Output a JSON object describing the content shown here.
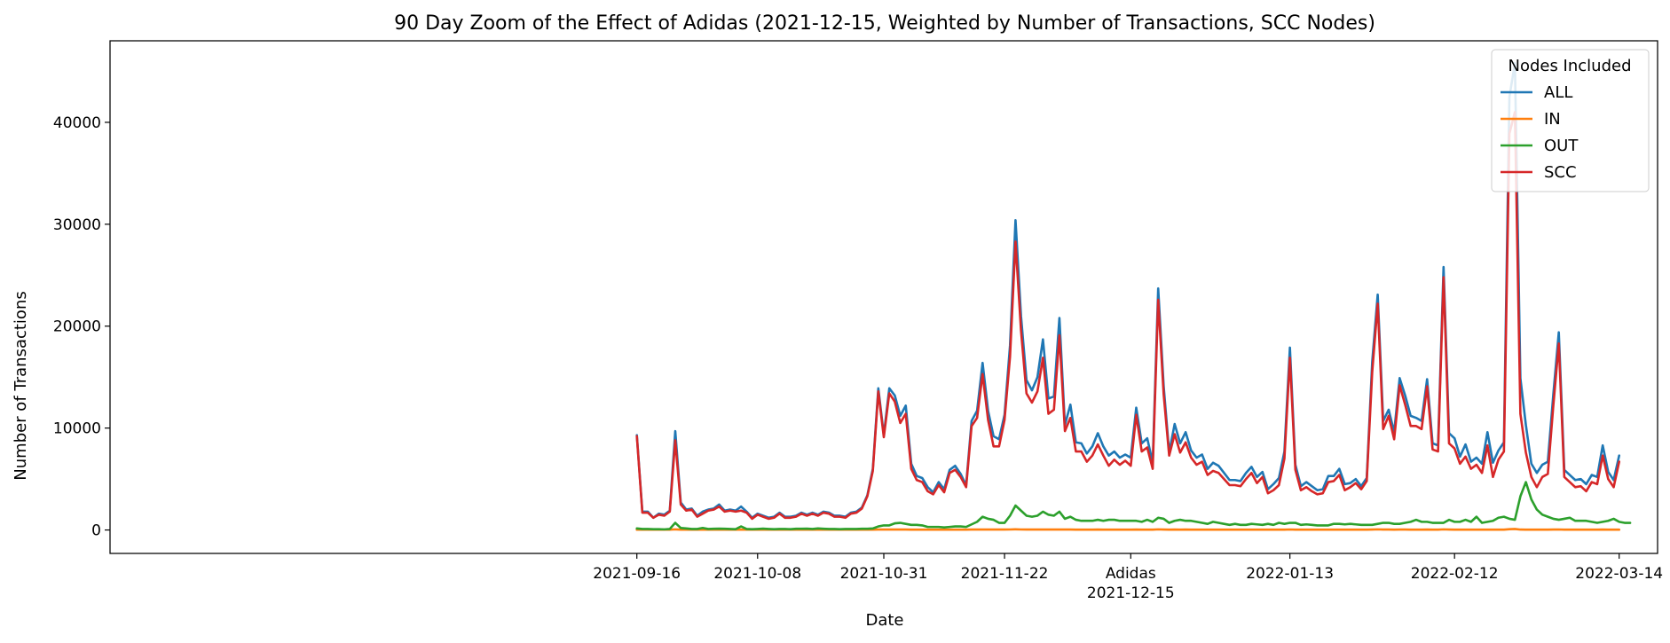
{
  "chart_data": {
    "type": "line",
    "title": "90 Day Zoom of the Effect of Adidas (2021-12-15, Weighted by Number of Transactions, SCC Nodes)",
    "xlabel": "Date",
    "ylabel": "Number of Transactions",
    "ylim": [
      -2300,
      48000
    ],
    "yticks": [
      0,
      10000,
      20000,
      30000,
      40000
    ],
    "xlim_days": [
      -96,
      186
    ],
    "xticks": [
      {
        "day": 0,
        "label": "2021-09-16"
      },
      {
        "day": 22,
        "label": "2021-10-08"
      },
      {
        "day": 45,
        "label": "2021-10-31"
      },
      {
        "day": 67,
        "label": "2021-11-22"
      },
      {
        "day": 90,
        "label": "Adidas",
        "label2": "2021-12-15"
      },
      {
        "day": 119,
        "label": "2022-01-13"
      },
      {
        "day": 149,
        "label": "2022-02-12"
      },
      {
        "day": 179,
        "label": "2022-03-14"
      }
    ],
    "start_date": "2021-09-16",
    "legend_title": "Nodes Included",
    "legend_position": "top-right",
    "grid": false,
    "series": [
      {
        "name": "ALL",
        "color": "#1f77b4",
        "values": [
          9300,
          1800,
          1800,
          1200,
          1600,
          1500,
          1900,
          9700,
          2700,
          2000,
          2100,
          1400,
          1800,
          2000,
          2100,
          2500,
          1900,
          2000,
          1900,
          2300,
          1800,
          1200,
          1600,
          1400,
          1200,
          1300,
          1700,
          1300,
          1300,
          1400,
          1700,
          1500,
          1700,
          1500,
          1800,
          1700,
          1400,
          1400,
          1300,
          1700,
          1800,
          2200,
          3400,
          6000,
          13900,
          9300,
          13900,
          13200,
          11200,
          12200,
          6500,
          5300,
          5100,
          4200,
          3700,
          4700,
          4000,
          5900,
          6300,
          5500,
          4400,
          10700,
          11700,
          16400,
          11700,
          9200,
          8900,
          11300,
          18100,
          30400,
          21000,
          14700,
          13700,
          15000,
          18700,
          12900,
          13100,
          20800,
          10300,
          12300,
          8600,
          8500,
          7500,
          8200,
          9500,
          8200,
          7300,
          7700,
          7100,
          7400,
          7100,
          12000,
          8500,
          9000,
          6600,
          23700,
          14100,
          7600,
          10400,
          8500,
          9600,
          7800,
          7100,
          7400,
          6000,
          6600,
          6300,
          5600,
          4900,
          4900,
          4800,
          5600,
          6200,
          5200,
          5700,
          4000,
          4500,
          5100,
          7700,
          17900,
          6400,
          4300,
          4700,
          4300,
          3900,
          4000,
          5300,
          5300,
          6000,
          4500,
          4600,
          5000,
          4300,
          5100,
          16500,
          23100,
          10700,
          11800,
          9600,
          14900,
          13200,
          11200,
          11000,
          10700,
          14800,
          8500,
          8300,
          25800,
          9500,
          9000,
          7200,
          8400,
          6700,
          7100,
          6500,
          9600,
          6600,
          7800,
          8600,
          42500,
          45800,
          14900,
          10300,
          6500,
          5600,
          6400,
          6700,
          13300,
          19400,
          5900,
          5400,
          4900,
          5000,
          4500,
          5400,
          5200,
          8300,
          5700,
          4900,
          7300
        ]
      },
      {
        "name": "IN",
        "color": "#ff7f0e",
        "values": [
          30,
          30,
          30,
          30,
          30,
          30,
          30,
          60,
          30,
          30,
          30,
          30,
          30,
          30,
          30,
          30,
          30,
          30,
          30,
          30,
          30,
          30,
          30,
          30,
          30,
          30,
          30,
          30,
          30,
          30,
          30,
          30,
          30,
          30,
          30,
          30,
          30,
          30,
          30,
          30,
          30,
          30,
          30,
          30,
          40,
          40,
          40,
          40,
          40,
          40,
          30,
          30,
          30,
          30,
          30,
          30,
          30,
          30,
          30,
          30,
          30,
          40,
          40,
          50,
          40,
          40,
          40,
          40,
          50,
          70,
          50,
          40,
          40,
          40,
          50,
          40,
          40,
          50,
          40,
          40,
          30,
          30,
          30,
          30,
          40,
          30,
          30,
          30,
          30,
          30,
          30,
          40,
          30,
          30,
          30,
          60,
          40,
          30,
          40,
          30,
          40,
          30,
          30,
          30,
          30,
          30,
          30,
          30,
          30,
          30,
          30,
          30,
          30,
          30,
          30,
          30,
          30,
          30,
          30,
          50,
          30,
          30,
          30,
          30,
          30,
          30,
          30,
          30,
          30,
          30,
          30,
          30,
          30,
          30,
          40,
          60,
          40,
          40,
          30,
          40,
          40,
          30,
          30,
          30,
          40,
          30,
          30,
          60,
          40,
          30,
          30,
          30,
          30,
          30,
          30,
          30,
          30,
          30,
          30,
          80,
          100,
          40,
          30,
          30,
          30,
          30,
          30,
          40,
          50,
          30,
          30,
          30,
          30,
          30,
          30,
          30,
          40,
          30,
          30,
          30
        ]
      },
      {
        "name": "OUT",
        "color": "#2ca02c",
        "values": [
          150,
          100,
          100,
          80,
          80,
          60,
          100,
          700,
          200,
          150,
          100,
          100,
          200,
          100,
          120,
          130,
          120,
          100,
          80,
          350,
          100,
          80,
          100,
          130,
          100,
          80,
          100,
          100,
          80,
          120,
          120,
          130,
          100,
          150,
          120,
          100,
          100,
          80,
          100,
          100,
          100,
          120,
          120,
          150,
          350,
          450,
          450,
          650,
          700,
          600,
          500,
          500,
          450,
          300,
          300,
          300,
          250,
          300,
          350,
          350,
          300,
          550,
          800,
          1300,
          1100,
          1000,
          700,
          700,
          1400,
          2400,
          1900,
          1400,
          1300,
          1400,
          1800,
          1500,
          1400,
          1800,
          1100,
          1300,
          1000,
          900,
          900,
          900,
          1000,
          900,
          1000,
          1000,
          900,
          900,
          900,
          900,
          800,
          1000,
          800,
          1200,
          1100,
          700,
          900,
          1000,
          900,
          900,
          800,
          700,
          600,
          800,
          700,
          600,
          500,
          600,
          500,
          500,
          600,
          550,
          500,
          600,
          500,
          700,
          600,
          700,
          700,
          500,
          550,
          500,
          450,
          450,
          450,
          600,
          600,
          550,
          600,
          550,
          500,
          500,
          500,
          600,
          700,
          700,
          600,
          600,
          700,
          800,
          1000,
          800,
          800,
          700,
          700,
          700,
          1000,
          800,
          800,
          1000,
          800,
          1300,
          700,
          800,
          900,
          1200,
          1300,
          1100,
          1000,
          3300,
          4700,
          3000,
          2000,
          1500,
          1300,
          1100,
          1000,
          1100,
          1200,
          900,
          900,
          900,
          800,
          700,
          800,
          900,
          1100,
          800,
          700,
          700
        ]
      },
      {
        "name": "SCC",
        "color": "#d62728",
        "values": [
          9200,
          1700,
          1700,
          1200,
          1500,
          1400,
          1800,
          8800,
          2500,
          1900,
          2000,
          1300,
          1600,
          1900,
          2000,
          2300,
          1800,
          1900,
          1800,
          1900,
          1700,
          1100,
          1500,
          1300,
          1100,
          1200,
          1600,
          1200,
          1200,
          1300,
          1600,
          1400,
          1600,
          1400,
          1700,
          1600,
          1300,
          1300,
          1200,
          1600,
          1700,
          2100,
          3300,
          5800,
          13600,
          9100,
          13400,
          12600,
          10500,
          11400,
          6000,
          4900,
          4700,
          3800,
          3500,
          4400,
          3700,
          5600,
          5900,
          5200,
          4200,
          10200,
          11000,
          15300,
          10800,
          8200,
          8200,
          10800,
          17000,
          28300,
          19600,
          13400,
          12500,
          13600,
          16900,
          11400,
          11800,
          19100,
          9700,
          11000,
          7700,
          7700,
          6700,
          7300,
          8400,
          7300,
          6300,
          6900,
          6400,
          6800,
          6300,
          11300,
          7700,
          8100,
          6000,
          22600,
          13300,
          7300,
          9400,
          7600,
          8600,
          7100,
          6400,
          6700,
          5400,
          5800,
          5600,
          5000,
          4400,
          4400,
          4300,
          5000,
          5600,
          4600,
          5200,
          3600,
          3900,
          4400,
          7000,
          16900,
          5900,
          3900,
          4200,
          3800,
          3500,
          3600,
          4700,
          4800,
          5400,
          3900,
          4200,
          4600,
          4000,
          4800,
          15500,
          22200,
          9900,
          11200,
          8900,
          14200,
          12300,
          10200,
          10200,
          9900,
          14100,
          7900,
          7700,
          24800,
          8500,
          8000,
          6500,
          7200,
          6000,
          6400,
          5600,
          8300,
          5200,
          6900,
          7700,
          38900,
          41000,
          11400,
          7600,
          5200,
          4200,
          5200,
          5500,
          12200,
          18300,
          5200,
          4700,
          4200,
          4300,
          3800,
          4700,
          4500,
          7300,
          5000,
          4200,
          6700
        ]
      }
    ]
  }
}
